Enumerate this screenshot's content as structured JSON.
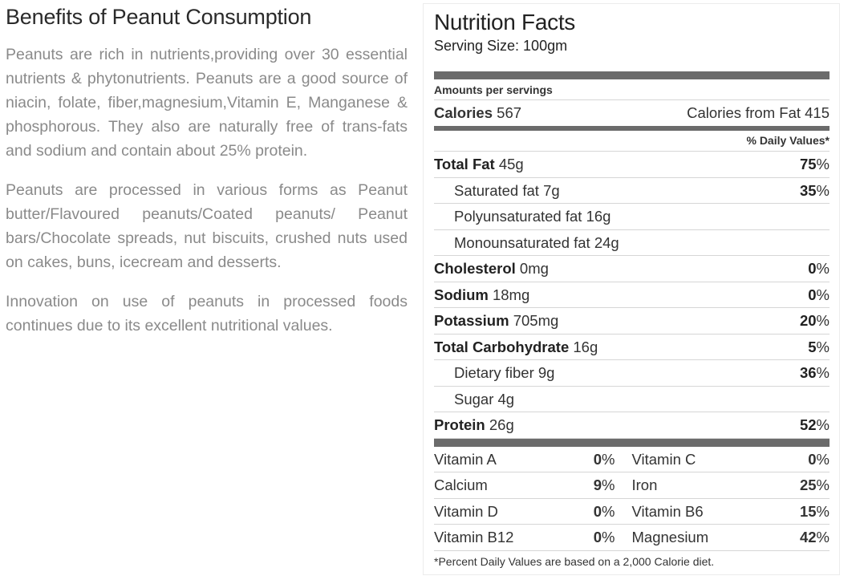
{
  "article": {
    "title": "Benefits of Peanut Consumption",
    "paragraphs": [
      "Peanuts are rich in nutrients,providing over 30 essential nutrients & phytonutrients. Peanuts are a good source of niacin, folate, fiber,magnesium,Vitamin E, Manganese & phosphorous. They also are naturally free of trans-fats and sodium and contain about 25% protein.",
      "Peanuts are processed in various forms as Peanut butter/Flavoured peanuts/Coated peanuts/ Peanut bars/Chocolate spreads, nut biscuits, crushed nuts used on cakes, buns, icecream and desserts.",
      "Innovation on use of peanuts in processed foods continues due to its excellent nutritional values."
    ]
  },
  "label": {
    "title": "Nutrition Facts",
    "serving": "Serving Size: 100gm",
    "amounts": "Amounts per servings",
    "calories_label": "Calories",
    "calories_value": "567",
    "calories_fat": "Calories from Fat 415",
    "dv_header": "% Daily Values*",
    "nutrients": [
      {
        "name": "Total Fat",
        "amount": "45g",
        "dv": "75",
        "bold": true,
        "indent": false
      },
      {
        "name": "Saturated fat",
        "amount": "7g",
        "dv": "35",
        "bold": false,
        "indent": true
      },
      {
        "name": "Polyunsaturated fat",
        "amount": "16g",
        "dv": "",
        "bold": false,
        "indent": true
      },
      {
        "name": "Monounsaturated fat",
        "amount": "24g",
        "dv": "",
        "bold": false,
        "indent": true
      },
      {
        "name": "Cholesterol",
        "amount": "0mg",
        "dv": "0",
        "bold": true,
        "indent": false
      },
      {
        "name": "Sodium",
        "amount": "18mg",
        "dv": "0",
        "bold": true,
        "indent": false
      },
      {
        "name": "Potassium",
        "amount": "705mg",
        "dv": "20",
        "bold": true,
        "indent": false
      },
      {
        "name": "Total Carbohydrate",
        "amount": "16g",
        "dv": "5",
        "bold": true,
        "indent": false
      },
      {
        "name": "Dietary fiber",
        "amount": "9g",
        "dv": "36",
        "bold": false,
        "indent": true
      },
      {
        "name": "Sugar",
        "amount": "4g",
        "dv": "",
        "bold": false,
        "indent": true
      },
      {
        "name": "Protein",
        "amount": "26g",
        "dv": "52",
        "bold": true,
        "indent": false
      }
    ],
    "vitamins": [
      [
        {
          "name": "Vitamin A",
          "dv": "0"
        },
        {
          "name": "Vitamin C",
          "dv": "0"
        }
      ],
      [
        {
          "name": "Calcium",
          "dv": "9"
        },
        {
          "name": "Iron",
          "dv": "25"
        }
      ],
      [
        {
          "name": "Vitamin D",
          "dv": "0"
        },
        {
          "name": "Vitamin B6",
          "dv": "15"
        }
      ],
      [
        {
          "name": "Vitamin B12",
          "dv": "0"
        },
        {
          "name": "Magnesium",
          "dv": "42"
        }
      ]
    ],
    "footnote": "*Percent Daily Values are based on a 2,000 Calorie diet."
  }
}
